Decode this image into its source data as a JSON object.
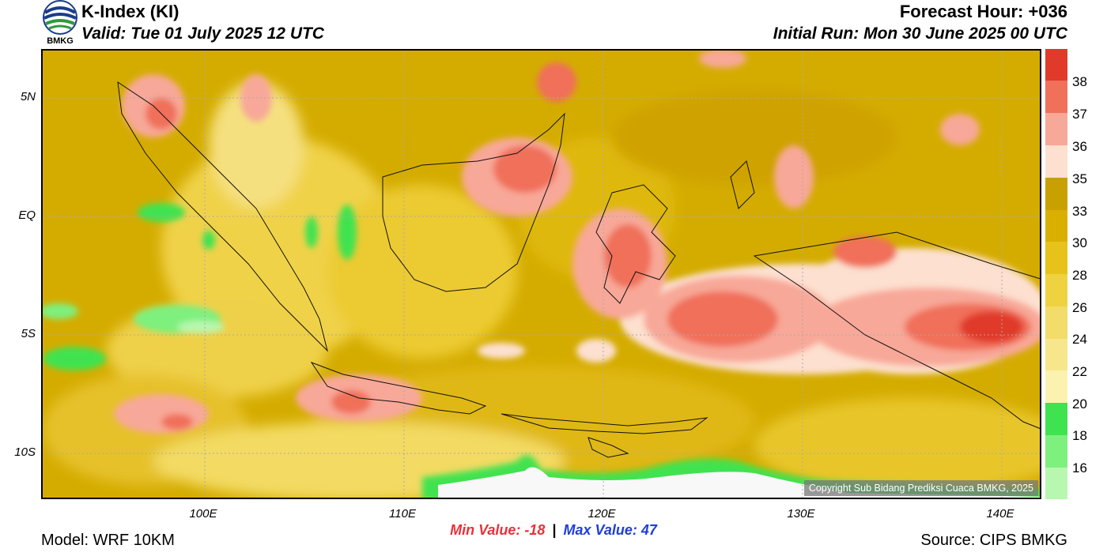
{
  "header": {
    "title": "K-Index (KI)",
    "valid": "Valid: Tue 01 July 2025 12 UTC",
    "forecast_hour": "Forecast Hour: +036",
    "initial_run": "Initial Run: Mon 30 June 2025 00 UTC",
    "logo_text": "BMKG"
  },
  "map": {
    "lat_labels": [
      "5N",
      "EQ",
      "5S",
      "10S"
    ],
    "lon_labels": [
      "100E",
      "110E",
      "120E",
      "130E",
      "140E"
    ],
    "copyright": "Copyright Sub Bidang Prediksi Cuaca BMKG, 2025"
  },
  "stats": {
    "min_label": "Min Value: -18",
    "separator": "|",
    "max_label": "Max Value:  47"
  },
  "footer": {
    "model": "Model: WRF 10KM",
    "source": "Source: CIPS BMKG"
  },
  "colorbar": {
    "levels": [
      "38",
      "37",
      "36",
      "35",
      "33",
      "30",
      "28",
      "26",
      "24",
      "22",
      "20",
      "18",
      "16"
    ],
    "colors": [
      "#e03a2a",
      "#f0705a",
      "#f8a898",
      "#fde0d0",
      "#c8a000",
      "#d9b000",
      "#e6c21a",
      "#efd240",
      "#f2dc6a",
      "#f7e68c",
      "#fbf2b0",
      "#3fe34f",
      "#7ef07e",
      "#b8f7b0",
      "#f8f8f8"
    ]
  }
}
